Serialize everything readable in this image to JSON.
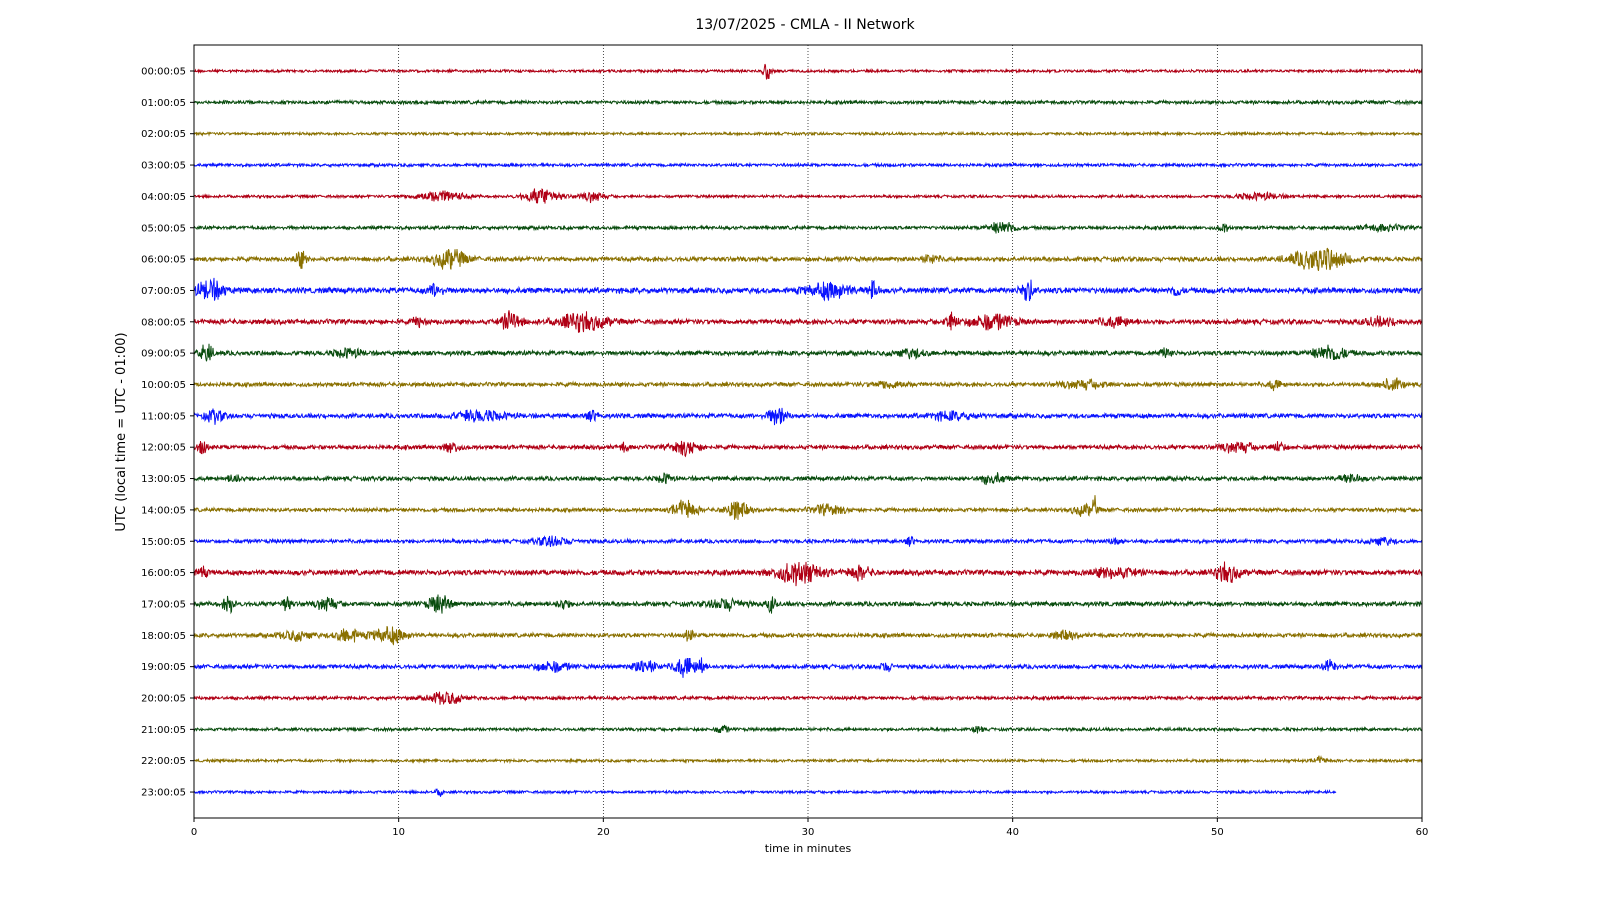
{
  "chart_data": {
    "type": "line",
    "title": "13/07/2025 - CMLA - II Network",
    "xlabel": "time in minutes",
    "ylabel": "UTC (local time = UTC - 01:00)",
    "xlim": [
      0,
      60
    ],
    "x_ticks": [
      "0",
      "10",
      "20",
      "30",
      "40",
      "50",
      "60"
    ],
    "grid": "vertical dotted at x ticks",
    "colors": [
      "#b00015",
      "#0a4d0f",
      "#8a7000",
      "#0a14ff"
    ],
    "rows": [
      {
        "label": "00:00:05",
        "color": "#b00015",
        "end": 60,
        "base": 0.35,
        "bursts": [
          [
            28,
            0.25,
            2.6
          ]
        ]
      },
      {
        "label": "01:00:05",
        "color": "#0a4d0f",
        "end": 60,
        "base": 0.45,
        "bursts": []
      },
      {
        "label": "02:00:05",
        "color": "#8a7000",
        "end": 60,
        "base": 0.35,
        "bursts": []
      },
      {
        "label": "03:00:05",
        "color": "#0a14ff",
        "end": 60,
        "base": 0.4,
        "bursts": []
      },
      {
        "label": "04:00:05",
        "color": "#b00015",
        "end": 60,
        "base": 0.35,
        "bursts": [
          [
            12,
            2.2,
            1.4
          ],
          [
            17,
            1.6,
            2.0
          ],
          [
            19.5,
            1.0,
            1.3
          ],
          [
            52,
            2.0,
            0.9
          ]
        ]
      },
      {
        "label": "05:00:05",
        "color": "#0a4d0f",
        "end": 60,
        "base": 0.45,
        "bursts": [
          [
            39.5,
            1.2,
            1.6
          ],
          [
            50.3,
            0.3,
            1.2
          ],
          [
            58,
            2.0,
            0.7
          ]
        ]
      },
      {
        "label": "06:00:05",
        "color": "#8a7000",
        "end": 60,
        "base": 0.6,
        "bursts": [
          [
            5.2,
            0.4,
            2.2
          ],
          [
            12.5,
            1.5,
            2.5
          ],
          [
            36,
            0.8,
            1.0
          ],
          [
            55,
            2.5,
            3.0
          ]
        ]
      },
      {
        "label": "07:00:05",
        "color": "#0a14ff",
        "end": 60,
        "base": 0.75,
        "bursts": [
          [
            0.8,
            1.2,
            2.6
          ],
          [
            11.8,
            0.6,
            1.5
          ],
          [
            31,
            2.0,
            2.0
          ],
          [
            33.2,
            0.3,
            3.0
          ],
          [
            40.7,
            0.5,
            3.2
          ],
          [
            48,
            0.4,
            1.3
          ]
        ]
      },
      {
        "label": "08:00:05",
        "color": "#b00015",
        "end": 60,
        "base": 0.65,
        "bursts": [
          [
            15.5,
            0.8,
            2.8
          ],
          [
            19,
            2.2,
            2.2
          ],
          [
            11,
            0.5,
            1.2
          ],
          [
            37,
            0.4,
            2.5
          ],
          [
            39,
            2.0,
            2.0
          ],
          [
            45,
            1.5,
            1.2
          ],
          [
            58,
            1.5,
            1.0
          ]
        ]
      },
      {
        "label": "09:00:05",
        "color": "#0a4d0f",
        "end": 60,
        "base": 0.6,
        "bursts": [
          [
            0.6,
            0.5,
            2.5
          ],
          [
            7.5,
            1.2,
            1.2
          ],
          [
            35,
            1.5,
            1.0
          ],
          [
            47.5,
            0.5,
            1.1
          ],
          [
            55.5,
            1.5,
            2.0
          ]
        ]
      },
      {
        "label": "10:00:05",
        "color": "#8a7000",
        "end": 60,
        "base": 0.55,
        "bursts": [
          [
            34,
            1.5,
            0.9
          ],
          [
            43.5,
            2.0,
            1.0
          ],
          [
            52.8,
            0.5,
            1.3
          ],
          [
            58.5,
            1.0,
            1.5
          ]
        ]
      },
      {
        "label": "11:00:05",
        "color": "#0a14ff",
        "end": 60,
        "base": 0.6,
        "bursts": [
          [
            1,
            0.8,
            1.6
          ],
          [
            14,
            2.5,
            1.3
          ],
          [
            19.5,
            0.5,
            1.3
          ],
          [
            28.5,
            0.8,
            2.3
          ],
          [
            37,
            2.0,
            1.0
          ]
        ]
      },
      {
        "label": "12:00:05",
        "color": "#b00015",
        "end": 60,
        "base": 0.55,
        "bursts": [
          [
            0.4,
            0.3,
            2.2
          ],
          [
            12.6,
            0.6,
            1.5
          ],
          [
            21,
            0.3,
            1.3
          ],
          [
            24,
            1.2,
            1.9
          ],
          [
            51,
            1.5,
            1.3
          ],
          [
            53,
            0.5,
            1.3
          ]
        ]
      },
      {
        "label": "13:00:05",
        "color": "#0a4d0f",
        "end": 60,
        "base": 0.55,
        "bursts": [
          [
            2,
            0.5,
            1.3
          ],
          [
            23,
            0.6,
            1.3
          ],
          [
            39,
            1.0,
            1.4
          ],
          [
            56.5,
            1.0,
            1.0
          ]
        ]
      },
      {
        "label": "14:00:05",
        "color": "#8a7000",
        "end": 60,
        "base": 0.5,
        "bursts": [
          [
            24,
            1.0,
            2.5
          ],
          [
            26.5,
            1.0,
            2.5
          ],
          [
            31,
            1.5,
            1.3
          ],
          [
            43.5,
            1.0,
            1.4
          ],
          [
            44,
            0.1,
            3.0
          ]
        ]
      },
      {
        "label": "15:00:05",
        "color": "#0a14ff",
        "end": 60,
        "base": 0.5,
        "bursts": [
          [
            17.5,
            1.5,
            1.2
          ],
          [
            35,
            0.3,
            1.1
          ],
          [
            45,
            0.5,
            1.0
          ],
          [
            58,
            1.0,
            1.0
          ]
        ]
      },
      {
        "label": "16:00:05",
        "color": "#b00015",
        "end": 60,
        "base": 0.7,
        "bursts": [
          [
            0.4,
            0.3,
            1.6
          ],
          [
            29.5,
            2.0,
            2.8
          ],
          [
            32.5,
            1.0,
            1.6
          ],
          [
            45,
            2.0,
            1.2
          ],
          [
            50.5,
            1.0,
            2.4
          ]
        ]
      },
      {
        "label": "17:00:05",
        "color": "#0a4d0f",
        "end": 60,
        "base": 0.6,
        "bursts": [
          [
            1.7,
            0.4,
            2.3
          ],
          [
            4.5,
            0.3,
            2.3
          ],
          [
            6.5,
            0.8,
            1.8
          ],
          [
            12,
            1.0,
            2.2
          ],
          [
            18,
            0.5,
            1.2
          ],
          [
            26,
            1.5,
            1.4
          ],
          [
            28.2,
            0.3,
            2.2
          ]
        ]
      },
      {
        "label": "18:00:05",
        "color": "#8a7000",
        "end": 60,
        "base": 0.55,
        "bursts": [
          [
            5,
            1.5,
            1.2
          ],
          [
            7.5,
            1.0,
            2.0
          ],
          [
            9.5,
            1.5,
            2.2
          ],
          [
            24.2,
            0.3,
            1.5
          ],
          [
            42.5,
            1.0,
            1.0
          ]
        ]
      },
      {
        "label": "19:00:05",
        "color": "#0a14ff",
        "end": 60,
        "base": 0.55,
        "bursts": [
          [
            17.5,
            1.5,
            1.3
          ],
          [
            22,
            1.0,
            1.8
          ],
          [
            24,
            1.0,
            2.6
          ],
          [
            24.8,
            0.2,
            3.0
          ],
          [
            33.8,
            0.5,
            1.1
          ],
          [
            55.5,
            0.5,
            1.5
          ]
        ]
      },
      {
        "label": "20:00:05",
        "color": "#b00015",
        "end": 60,
        "base": 0.45,
        "bursts": [
          [
            12.3,
            1.5,
            1.6
          ]
        ]
      },
      {
        "label": "21:00:05",
        "color": "#0a4d0f",
        "end": 60,
        "base": 0.4,
        "bursts": [
          [
            25.8,
            0.4,
            1.3
          ],
          [
            38.3,
            0.3,
            1.2
          ]
        ]
      },
      {
        "label": "22:00:05",
        "color": "#8a7000",
        "end": 60,
        "base": 0.35,
        "bursts": [
          [
            55,
            0.5,
            1.0
          ]
        ]
      },
      {
        "label": "23:00:05",
        "color": "#0a14ff",
        "end": 55.8,
        "base": 0.35,
        "bursts": [
          [
            12,
            0.2,
            1.2
          ]
        ]
      }
    ]
  }
}
